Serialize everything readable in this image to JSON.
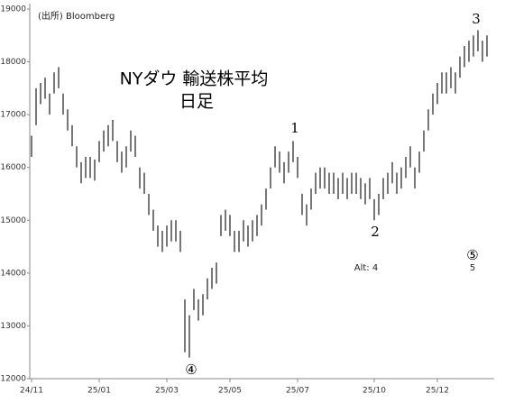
{
  "chart_data": {
    "type": "range-bar",
    "title": "NYダウ 輸送株平均",
    "subtitle": "日足",
    "source": "(出所) Bloomberg",
    "annotations": [
      "1",
      "2",
      "3",
      "④",
      "⑤",
      "Alt: 4",
      "5"
    ],
    "categories": [
      "24/11",
      null,
      null,
      null,
      null,
      null,
      null,
      null,
      null,
      null,
      null,
      null,
      null,
      null,
      null,
      "25/01",
      null,
      null,
      null,
      null,
      null,
      null,
      null,
      null,
      null,
      null,
      null,
      null,
      null,
      null,
      "25/03",
      null,
      null,
      null,
      null,
      null,
      null,
      null,
      null,
      null,
      null,
      null,
      null,
      null,
      "25/05",
      null,
      null,
      null,
      null,
      null,
      null,
      null,
      null,
      null,
      null,
      null,
      null,
      null,
      null,
      "25/07",
      null,
      null,
      null,
      null,
      null,
      null,
      null,
      null,
      null,
      null,
      null,
      null,
      null,
      null,
      null,
      null,
      "25/10",
      null,
      null,
      null,
      null,
      null,
      null,
      null,
      null,
      null,
      null,
      null,
      null,
      null,
      "25/12",
      null,
      null,
      null,
      null,
      null,
      null,
      null,
      null,
      null,
      null,
      null
    ],
    "high": [
      16600,
      17500,
      17600,
      17700,
      17400,
      17800,
      17900,
      17400,
      17100,
      16800,
      16400,
      16100,
      16200,
      16200,
      16150,
      16500,
      16700,
      16800,
      16900,
      16500,
      16300,
      16400,
      16700,
      16600,
      16000,
      15900,
      15500,
      15200,
      14900,
      14800,
      14900,
      15000,
      15000,
      14800,
      13500,
      13200,
      13700,
      13500,
      13600,
      13900,
      14100,
      14200,
      15100,
      15200,
      15100,
      14800,
      14800,
      15000,
      14900,
      15000,
      15100,
      15300,
      15600,
      16000,
      16400,
      16300,
      16100,
      16300,
      16500,
      16200,
      15500,
      15300,
      15600,
      15900,
      16000,
      16000,
      15900,
      15900,
      15800,
      15900,
      15800,
      15900,
      15900,
      15800,
      15700,
      15800,
      15400,
      15500,
      15800,
      15900,
      16100,
      15900,
      16000,
      16200,
      16400,
      16000,
      16300,
      16700,
      17100,
      17400,
      17600,
      17800,
      17800,
      17900,
      17800,
      18100,
      18300,
      18400,
      18500,
      18600,
      18400,
      18500
    ],
    "low": [
      16200,
      16800,
      17200,
      17300,
      17000,
      17400,
      17500,
      17000,
      16700,
      16400,
      16000,
      15700,
      15800,
      15800,
      15750,
      16100,
      16300,
      16400,
      16500,
      16100,
      15900,
      16000,
      16300,
      16200,
      15600,
      15500,
      15100,
      14800,
      14500,
      14400,
      14500,
      14600,
      14600,
      14400,
      12500,
      12400,
      13300,
      13100,
      13200,
      13500,
      13700,
      13800,
      14700,
      14800,
      14700,
      14400,
      14400,
      14600,
      14500,
      14600,
      14700,
      14900,
      15200,
      15600,
      16000,
      15900,
      15700,
      15900,
      16100,
      15800,
      15100,
      14900,
      15200,
      15500,
      15600,
      15600,
      15500,
      15500,
      15400,
      15500,
      15400,
      15500,
      15500,
      15400,
      15300,
      15400,
      15000,
      15100,
      15400,
      15500,
      15700,
      15500,
      15600,
      15800,
      16000,
      15600,
      15900,
      16300,
      16700,
      17000,
      17200,
      17400,
      17400,
      17500,
      17400,
      17700,
      17900,
      18000,
      18100,
      18200,
      18000,
      18100
    ],
    "color": "#555555",
    "ylim": [
      12000,
      19000
    ],
    "yticks": [
      12000,
      13000,
      14000,
      15000,
      16000,
      17000,
      18000,
      19000
    ],
    "grid": false
  }
}
